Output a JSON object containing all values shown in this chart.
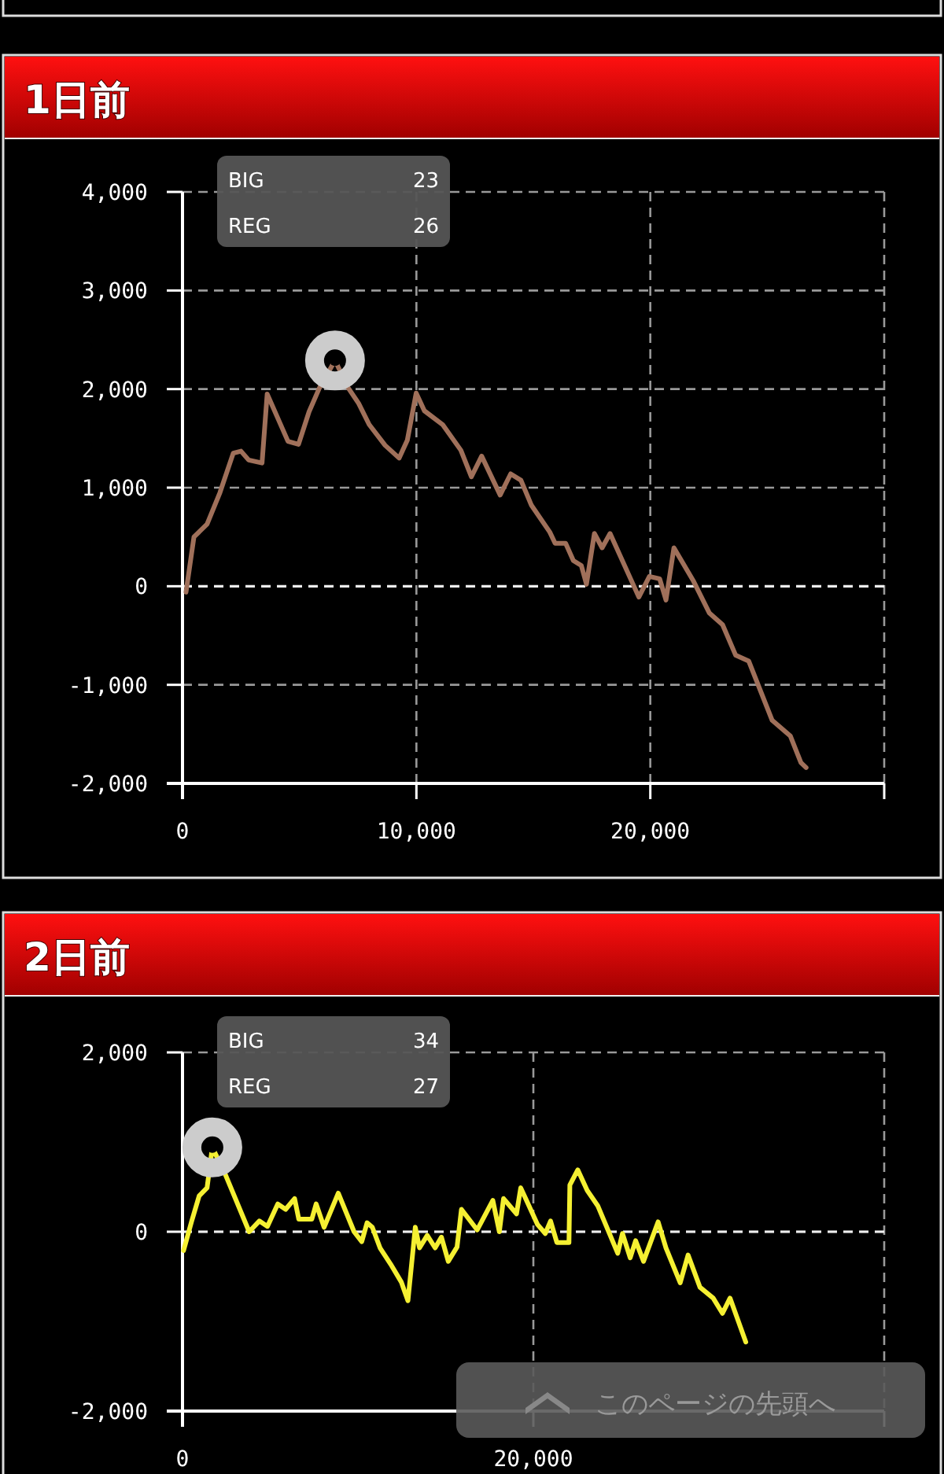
{
  "chart_data": [
    {
      "type": "line",
      "title": "1日前",
      "annotations": [
        "BIG",
        "23",
        "REG",
        "26"
      ],
      "xlim": [
        0,
        30000
      ],
      "ylim": [
        -2000,
        4000
      ],
      "xticks": [
        0,
        {
          "value": 10000,
          "label": "10,000"
        },
        {
          "value": 20000,
          "label": "20,000"
        },
        {
          "value": 30000,
          "label": null
        }
      ],
      "yticks": [
        {
          "value": -2000,
          "label": "-2,000"
        },
        {
          "value": -1000,
          "label": "-1,000"
        },
        0,
        {
          "value": 1000,
          "label": "1,000"
        },
        {
          "value": 2000,
          "label": "2,000"
        },
        {
          "value": 3000,
          "label": "3,000"
        },
        {
          "value": 4000,
          "label": "4,000"
        }
      ],
      "grid": true,
      "marker": "none",
      "line_style": "solid",
      "ref_lines": [
        {
          "axis": "y",
          "value": 0,
          "color": "#eeeeee",
          "line_style": "dashed"
        }
      ],
      "series": [
        {
          "color": "#a0705a",
          "x": [
            150,
            490,
            1050,
            1600,
            2170,
            2500,
            2830,
            3400,
            3620,
            4510,
            4960,
            5410,
            5850,
            6520,
            7090,
            7530,
            7980,
            8660,
            9260,
            9610,
            9990,
            10340,
            11120,
            11900,
            12350,
            12790,
            13580,
            14030,
            14470,
            14920,
            15700,
            15930,
            16380,
            16710,
            17050,
            17270,
            17610,
            17940,
            18280,
            19510,
            19960,
            20400,
            20670,
            21010,
            21850,
            22520,
            23090,
            23650,
            24210,
            25210,
            25990,
            26440,
            26660
          ],
          "values": [
            -60,
            500,
            630,
            950,
            1350,
            1370,
            1280,
            1250,
            1950,
            1470,
            1440,
            1770,
            2010,
            2290,
            2010,
            1855,
            1640,
            1430,
            1300,
            1480,
            1960,
            1780,
            1640,
            1380,
            1110,
            1320,
            925,
            1140,
            1075,
            820,
            550,
            435,
            435,
            260,
            210,
            20,
            535,
            390,
            535,
            -110,
            100,
            75,
            -140,
            390,
            50,
            -270,
            -390,
            -700,
            -760,
            -1360,
            -1520,
            -1790,
            -1840
          ]
        }
      ]
    },
    {
      "type": "line",
      "title": "2日前",
      "annotations": [
        "BIG",
        "34",
        "REG",
        "27",
        "このページの先頭へ"
      ],
      "xlim": [
        0,
        40000
      ],
      "ylim": [
        -2000,
        2000
      ],
      "xticks": [
        0,
        {
          "value": 20000,
          "label": "20,000"
        },
        {
          "value": 40000,
          "label": null
        }
      ],
      "yticks": [
        {
          "value": -2000,
          "label": "-2,000"
        },
        0,
        {
          "value": 2000,
          "label": "2,000"
        }
      ],
      "grid": true,
      "marker": "none",
      "line_style": "solid",
      "ref_lines": [
        {
          "axis": "y",
          "value": 0,
          "color": "#eeeeee",
          "line_style": "dashed"
        }
      ],
      "series": [
        {
          "color": "#f5f032",
          "x": [
            60,
            510,
            950,
            1400,
            1700,
            2440,
            3800,
            4380,
            4840,
            5430,
            5880,
            6390,
            6630,
            7370,
            7620,
            8070,
            8880,
            9780,
            10220,
            10520,
            10820,
            11260,
            11860,
            12470,
            12850,
            13270,
            13510,
            13950,
            14400,
            14760,
            15150,
            15650,
            15900,
            16800,
            17690,
            18060,
            18300,
            19040,
            19280,
            20240,
            20680,
            20980,
            21340,
            22030,
            22080,
            22530,
            23070,
            23670,
            24810,
            25080,
            25520,
            25830,
            26280,
            27110,
            27560,
            28370,
            28820,
            29500,
            30250,
            30780,
            31210,
            32110
          ],
          "values": [
            -210,
            110,
            400,
            490,
            940,
            640,
            0,
            120,
            60,
            310,
            250,
            370,
            140,
            140,
            310,
            50,
            430,
            0,
            -110,
            100,
            50,
            -180,
            -360,
            -560,
            -770,
            50,
            -180,
            -40,
            -180,
            -60,
            -330,
            -170,
            250,
            20,
            350,
            0,
            370,
            200,
            490,
            80,
            -20,
            120,
            -120,
            -120,
            520,
            690,
            460,
            290,
            -240,
            -20,
            -290,
            -100,
            -330,
            110,
            -180,
            -570,
            -260,
            -620,
            -740,
            -910,
            -740,
            -1230
          ]
        }
      ]
    }
  ]
}
